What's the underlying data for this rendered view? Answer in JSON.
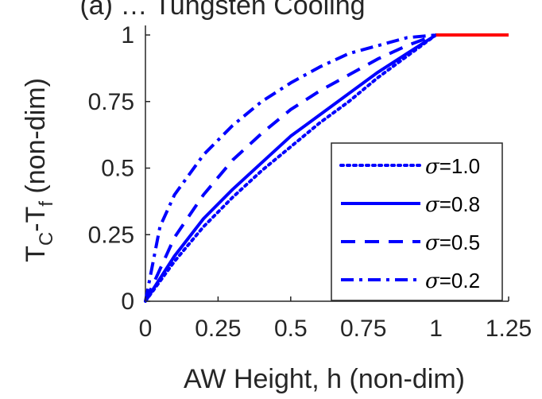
{
  "chart_data": {
    "type": "line",
    "title": "(a) … Tungsten Cooling",
    "xlabel": "AW Height, h (non-dim)",
    "ylabel_main": "T",
    "ylabel_sub1": "C",
    "ylabel_dash": "-T",
    "ylabel_sub2": "f",
    "ylabel_tail": " (non-dim)",
    "xlim": [
      0,
      1.25
    ],
    "ylim": [
      0,
      1
    ],
    "xticks": [
      0,
      0.25,
      0.5,
      0.75,
      1,
      1.25
    ],
    "xticklabels": [
      "0",
      "0.25",
      "0.5",
      "0.75",
      "1",
      "1.25"
    ],
    "yticks": [
      0,
      0.25,
      0.5,
      0.75,
      1
    ],
    "yticklabels": [
      "0",
      "0.25",
      "0.5",
      "0.75",
      "1"
    ],
    "grid": false,
    "legend_position": "lower-right",
    "series": [
      {
        "name": "σ=1.0",
        "legend_symbol": "σ",
        "legend_value": "=1.0",
        "style": "dotted",
        "color": "#0000ff",
        "x": [
          0,
          0.1,
          0.2,
          0.3,
          0.4,
          0.5,
          0.6,
          0.7,
          0.8,
          0.9,
          1.0
        ],
        "y": [
          0,
          0.15,
          0.28,
          0.39,
          0.49,
          0.58,
          0.67,
          0.75,
          0.84,
          0.92,
          1.0
        ]
      },
      {
        "name": "σ=0.8",
        "legend_symbol": "σ",
        "legend_value": "=0.8",
        "style": "solid",
        "color": "#0000ff",
        "x": [
          0,
          0.1,
          0.2,
          0.3,
          0.4,
          0.5,
          0.6,
          0.7,
          0.8,
          0.9,
          1.0
        ],
        "y": [
          0,
          0.17,
          0.31,
          0.42,
          0.52,
          0.62,
          0.7,
          0.78,
          0.86,
          0.93,
          1.0
        ]
      },
      {
        "name": "σ=0.5",
        "legend_symbol": "σ",
        "legend_value": "=0.5",
        "style": "dashed",
        "color": "#0000ff",
        "x": [
          0,
          0.1,
          0.2,
          0.3,
          0.4,
          0.5,
          0.6,
          0.7,
          0.8,
          0.9,
          1.0
        ],
        "y": [
          0,
          0.24,
          0.4,
          0.53,
          0.63,
          0.72,
          0.79,
          0.85,
          0.91,
          0.96,
          1.0
        ]
      },
      {
        "name": "σ=0.2",
        "legend_symbol": "σ",
        "legend_value": "=0.2",
        "style": "dashdot",
        "color": "#0000ff",
        "x": [
          0,
          0.05,
          0.1,
          0.2,
          0.3,
          0.4,
          0.5,
          0.6,
          0.7,
          0.8,
          0.9,
          1.0
        ],
        "y": [
          0,
          0.28,
          0.4,
          0.55,
          0.66,
          0.75,
          0.82,
          0.88,
          0.93,
          0.96,
          0.99,
          1.0
        ]
      },
      {
        "style": "solid",
        "color": "#ff0000",
        "x": [
          1.0,
          1.25
        ],
        "y": [
          1.0,
          1.0
        ]
      }
    ]
  }
}
